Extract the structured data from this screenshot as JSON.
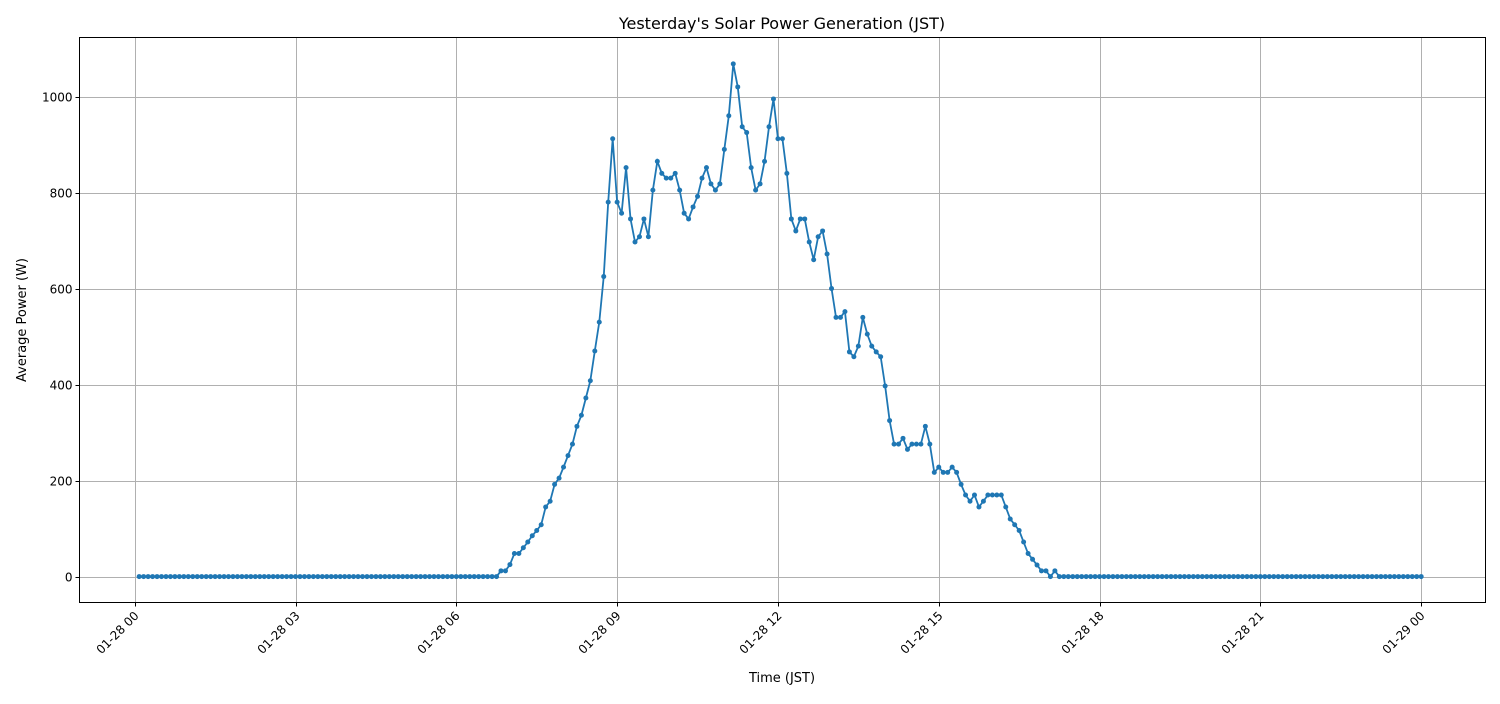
{
  "chart_data": {
    "type": "line",
    "title": "Yesterday's Solar Power Generation (JST)",
    "xlabel": "Time (JST)",
    "ylabel": "Average Power (W)",
    "x_start": "01-28 00:05",
    "x_interval_minutes": 5,
    "xlim_hours": [
      -1.03,
      25.2
    ],
    "ylim": [
      -54,
      1123
    ],
    "x_ticks": [
      "01-28 00",
      "01-28 03",
      "01-28 06",
      "01-28 09",
      "01-28 12",
      "01-28 15",
      "01-28 18",
      "01-28 21",
      "01-29 00"
    ],
    "y_ticks": [
      0,
      200,
      400,
      600,
      800,
      1000
    ],
    "grid": true,
    "color": "#1f77b4",
    "marker": "circle",
    "values": [
      0,
      0,
      0,
      0,
      0,
      0,
      0,
      0,
      0,
      0,
      0,
      0,
      0,
      0,
      0,
      0,
      0,
      0,
      0,
      0,
      0,
      0,
      0,
      0,
      0,
      0,
      0,
      0,
      0,
      0,
      0,
      0,
      0,
      0,
      0,
      0,
      0,
      0,
      0,
      0,
      0,
      0,
      0,
      0,
      0,
      0,
      0,
      0,
      0,
      0,
      0,
      0,
      0,
      0,
      0,
      0,
      0,
      0,
      0,
      0,
      0,
      0,
      0,
      0,
      0,
      0,
      0,
      0,
      0,
      0,
      0,
      0,
      0,
      0,
      0,
      0,
      0,
      0,
      0,
      0,
      0,
      12,
      12,
      25,
      48,
      48,
      60,
      72,
      85,
      96,
      108,
      145,
      157,
      192,
      205,
      228,
      252,
      276,
      313,
      336,
      372,
      408,
      470,
      530,
      625,
      780,
      912,
      780,
      757,
      852,
      745,
      697,
      708,
      745,
      708,
      805,
      865,
      840,
      830,
      830,
      840,
      805,
      757,
      745,
      770,
      792,
      830,
      852,
      818,
      805,
      818,
      890,
      960,
      1068,
      1020,
      937,
      925,
      852,
      805,
      818,
      865,
      937,
      995,
      912,
      912,
      840,
      745,
      720,
      745,
      745,
      697,
      660,
      708,
      720,
      672,
      600,
      540,
      540,
      552,
      468,
      458,
      480,
      540,
      505,
      480,
      468,
      458,
      397,
      325,
      276,
      276,
      288,
      265,
      276,
      276,
      276,
      313,
      276,
      217,
      228,
      217,
      217,
      228,
      217,
      192,
      170,
      157,
      170,
      145,
      157,
      170,
      170,
      170,
      170,
      145,
      120,
      108,
      96,
      72,
      48,
      36,
      24,
      12,
      12,
      0,
      12,
      0,
      0,
      0,
      0,
      0,
      0,
      0,
      0,
      0,
      0,
      0,
      0,
      0,
      0,
      0,
      0,
      0,
      0,
      0,
      0,
      0,
      0,
      0,
      0,
      0,
      0,
      0,
      0,
      0,
      0,
      0,
      0,
      0,
      0,
      0,
      0,
      0,
      0,
      0,
      0,
      0,
      0,
      0,
      0,
      0,
      0,
      0,
      0,
      0,
      0,
      0,
      0,
      0,
      0,
      0,
      0,
      0,
      0,
      0,
      0,
      0,
      0,
      0,
      0,
      0,
      0,
      0,
      0,
      0,
      0,
      0,
      0,
      0,
      0,
      0,
      0,
      0,
      0,
      0,
      0,
      0,
      0
    ]
  }
}
